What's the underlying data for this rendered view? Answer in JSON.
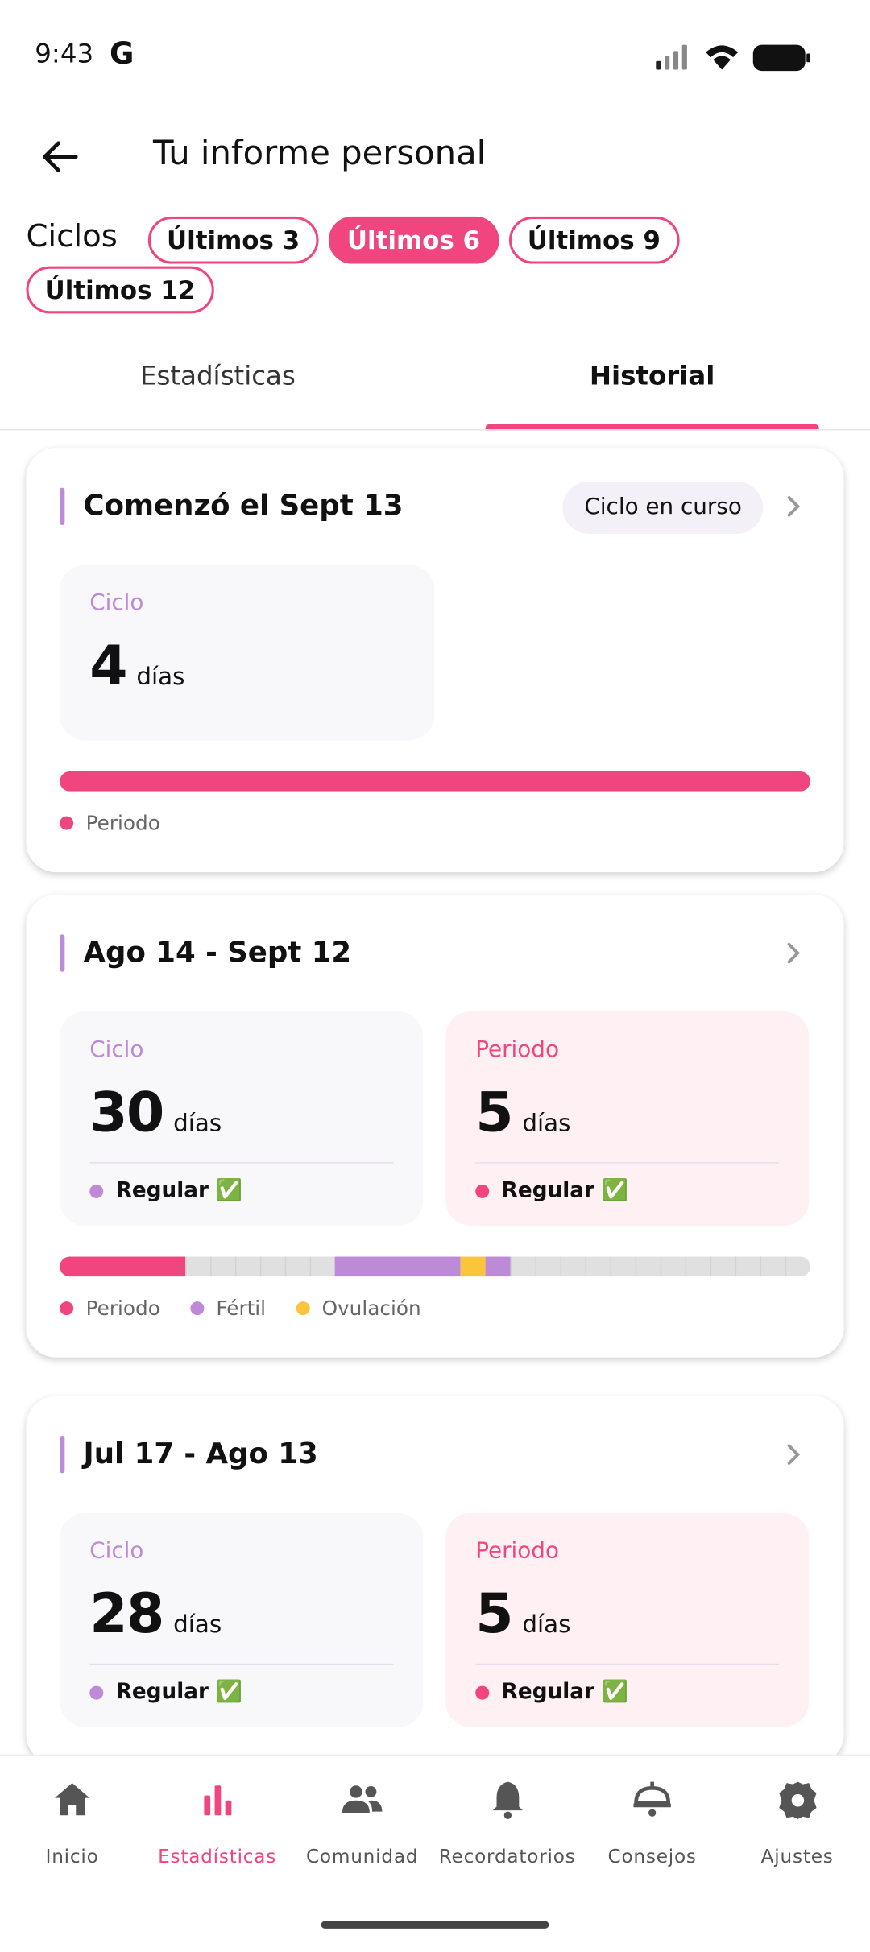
{
  "status_bar": {
    "time": "9:43",
    "carrier": "G"
  },
  "header": {
    "title": "Tu informe personal"
  },
  "filter": {
    "label": "Ciclos",
    "chips": [
      {
        "label": "Últimos 3",
        "selected": false
      },
      {
        "label": "Últimos 6",
        "selected": true
      },
      {
        "label": "Últimos 9",
        "selected": false
      },
      {
        "label": "Últimos 12",
        "selected": false
      }
    ]
  },
  "tabs": [
    {
      "label": "Estadísticas",
      "active": false
    },
    {
      "label": "Historial",
      "active": true
    }
  ],
  "cards": [
    {
      "title": "Comenzó el Sept 13",
      "badge": "Ciclo en curso",
      "stats": [
        {
          "label": "Ciclo",
          "value": 4,
          "unit": "días",
          "color": "#bd8ad8",
          "background": "#f8f7fa"
        }
      ],
      "segments": [
        {
          "color": "#f0457f",
          "days": 4
        }
      ],
      "legend": [
        {
          "label": "Periodo",
          "color": "#f0457f"
        }
      ]
    },
    {
      "title": "Ago 14 - Sept 12",
      "stats": [
        {
          "label": "Ciclo",
          "value": 30,
          "unit": "días",
          "status": "Regular ✅",
          "color": "#bd8ad8",
          "background": "#f8f7fa"
        },
        {
          "label": "Periodo",
          "value": 5,
          "unit": "días",
          "status": "Regular ✅",
          "color": "#f0457f",
          "background": "#fff0f4"
        }
      ],
      "segments": [
        {
          "color": "#f0457f",
          "days": 5
        },
        {
          "color": "#e0e0e0",
          "days": 6
        },
        {
          "color": "#bd8ad8",
          "days": 5
        },
        {
          "color": "#fbc43d",
          "days": 1
        },
        {
          "color": "#bd8ad8",
          "days": 1
        },
        {
          "color": "#e0e0e0",
          "days": 12
        }
      ],
      "legend": [
        {
          "label": "Periodo",
          "color": "#f0457f"
        },
        {
          "label": "Fértil",
          "color": "#bd8ad8"
        },
        {
          "label": "Ovulación",
          "color": "#fbc43d"
        }
      ]
    },
    {
      "title": "Jul 17 - Ago 13",
      "stats": [
        {
          "label": "Ciclo",
          "value": 28,
          "unit": "días",
          "status": "Regular ✅",
          "color": "#bd8ad8",
          "background": "#f8f7fa"
        },
        {
          "label": "Periodo",
          "value": 5,
          "unit": "días",
          "status": "Regular ✅",
          "color": "#f0457f",
          "background": "#fff0f4"
        }
      ]
    }
  ],
  "nav": [
    {
      "label": "Inicio",
      "active": false
    },
    {
      "label": "Estadísticas",
      "active": true
    },
    {
      "label": "Comunidad",
      "active": false
    },
    {
      "label": "Recordatorios",
      "active": false
    },
    {
      "label": "Consejos",
      "active": false
    },
    {
      "label": "Ajustes",
      "active": false
    }
  ]
}
